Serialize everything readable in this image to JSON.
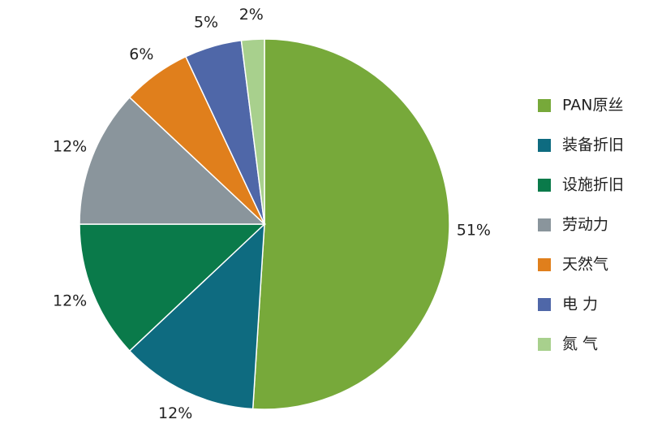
{
  "chart_data": {
    "type": "pie",
    "categories": [
      "PAN原丝",
      "装备折旧",
      "设施折旧",
      "劳动力",
      "天然气",
      "电 力",
      "氮 气"
    ],
    "values": [
      51,
      12,
      12,
      12,
      6,
      5,
      2
    ],
    "value_labels": [
      "51%",
      "12%",
      "12%",
      "12%",
      "6%",
      "5%",
      "2%"
    ],
    "colors": [
      "#77a93a",
      "#0e6b80",
      "#0a7a4a",
      "#8a959c",
      "#e07f1c",
      "#4f67a8",
      "#a8d08d"
    ],
    "legend": "right"
  }
}
